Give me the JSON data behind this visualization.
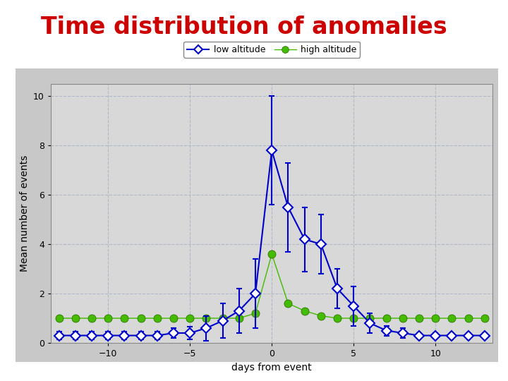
{
  "title": "Time distribution of anomalies",
  "title_color": "#cc0000",
  "xlabel": "days from event",
  "ylabel": "Mean number of events",
  "xlim": [
    -13.5,
    13.5
  ],
  "ylim": [
    0,
    10.5
  ],
  "yticks": [
    0,
    2,
    4,
    6,
    8,
    10
  ],
  "xticks": [
    -10,
    -5,
    0,
    5,
    10
  ],
  "background_color": "#c8c8c8",
  "plot_bg_color": "#d8d8d8",
  "grid_color": "#b0b8c8",
  "low_altitude": {
    "x": [
      -13,
      -12,
      -11,
      -10,
      -9,
      -8,
      -7,
      -6,
      -5,
      -4,
      -3,
      -2,
      -1,
      0,
      1,
      2,
      3,
      4,
      5,
      6,
      7,
      8,
      9,
      10,
      11,
      12,
      13
    ],
    "y": [
      0.3,
      0.3,
      0.3,
      0.3,
      0.3,
      0.3,
      0.3,
      0.4,
      0.4,
      0.6,
      0.9,
      1.3,
      2.0,
      7.8,
      5.5,
      4.2,
      4.0,
      2.2,
      1.5,
      0.8,
      0.5,
      0.4,
      0.3,
      0.3,
      0.3,
      0.3,
      0.3
    ],
    "yerr": [
      0.15,
      0.15,
      0.15,
      0.15,
      0.15,
      0.15,
      0.15,
      0.2,
      0.25,
      0.5,
      0.7,
      0.9,
      1.4,
      2.2,
      1.8,
      1.3,
      1.2,
      0.8,
      0.8,
      0.4,
      0.2,
      0.2,
      0.1,
      0.1,
      0.1,
      0.1,
      0.1
    ],
    "color": "#0000cc",
    "label": "low altitude"
  },
  "high_altitude": {
    "x": [
      -13,
      -12,
      -11,
      -10,
      -9,
      -8,
      -7,
      -6,
      -5,
      -4,
      -3,
      -2,
      -1,
      0,
      1,
      2,
      3,
      4,
      5,
      6,
      7,
      8,
      9,
      10,
      11,
      12,
      13
    ],
    "y": [
      1.0,
      1.0,
      1.0,
      1.0,
      1.0,
      1.0,
      1.0,
      1.0,
      1.0,
      1.0,
      1.0,
      1.0,
      1.2,
      3.6,
      1.6,
      1.3,
      1.1,
      1.0,
      1.0,
      1.0,
      1.0,
      1.0,
      1.0,
      1.0,
      1.0,
      1.0,
      1.0
    ],
    "color": "#44bb00",
    "label": "high altitude"
  },
  "title_fontsize": 24,
  "axis_fontsize": 10,
  "ylabel_fontsize": 10,
  "legend_fontsize": 9
}
